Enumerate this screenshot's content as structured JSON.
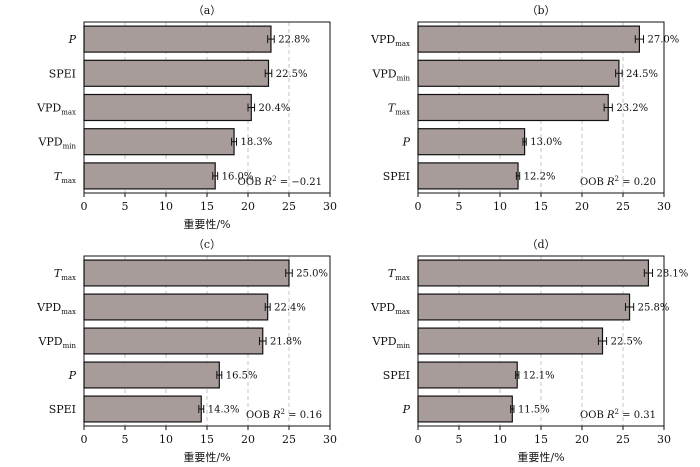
{
  "chart_data": [
    {
      "type": "bar",
      "orientation": "horizontal",
      "title": "（a）",
      "xlabel": "重要性/%",
      "xlim": [
        0,
        30
      ],
      "xticks": [
        0,
        5,
        10,
        15,
        20,
        25,
        30
      ],
      "grid": "vertical-dashed",
      "categories": [
        {
          "main": "P",
          "sub": "",
          "italic": true
        },
        {
          "main": "SPEI",
          "sub": "",
          "italic": false
        },
        {
          "main": "VPD",
          "sub": "max",
          "italic": false
        },
        {
          "main": "VPD",
          "sub": "min",
          "italic": false
        },
        {
          "main": "T",
          "sub": "max",
          "italic": true
        }
      ],
      "values": [
        22.8,
        22.5,
        20.4,
        18.3,
        16.0
      ],
      "value_labels": [
        "22.8%",
        "22.5%",
        "20.4%",
        "18.3%",
        "16.0%"
      ],
      "errors": [
        0.4,
        0.4,
        0.4,
        0.3,
        0.3
      ],
      "annotation": {
        "prefix": "OOB ",
        "var": "R",
        "sup": "2",
        "rest": " = −0.21"
      }
    },
    {
      "type": "bar",
      "orientation": "horizontal",
      "title": "（b）",
      "xlabel": "",
      "xlim": [
        0,
        30
      ],
      "xticks": [
        0,
        5,
        10,
        15,
        20,
        25,
        30
      ],
      "grid": "vertical-dashed",
      "categories": [
        {
          "main": "VPD",
          "sub": "max",
          "italic": false
        },
        {
          "main": "VPD",
          "sub": "min",
          "italic": false
        },
        {
          "main": "T",
          "sub": "max",
          "italic": true
        },
        {
          "main": "P",
          "sub": "",
          "italic": true
        },
        {
          "main": "SPEI",
          "sub": "",
          "italic": false
        }
      ],
      "values": [
        27.0,
        24.5,
        23.2,
        13.0,
        12.2
      ],
      "value_labels": [
        "27.0%",
        "24.5%",
        "23.2%",
        "13.0%",
        "12.2%"
      ],
      "errors": [
        0.5,
        0.4,
        0.5,
        0.2,
        0.2
      ],
      "annotation": {
        "prefix": "OOB ",
        "var": "R",
        "sup": "2",
        "rest": " = 0.20"
      }
    },
    {
      "type": "bar",
      "orientation": "horizontal",
      "title": "（c）",
      "xlabel": "重要性/%",
      "xlim": [
        0,
        30
      ],
      "xticks": [
        0,
        5,
        10,
        15,
        20,
        25,
        30
      ],
      "grid": "vertical-dashed",
      "categories": [
        {
          "main": "T",
          "sub": "max",
          "italic": true
        },
        {
          "main": "VPD",
          "sub": "max",
          "italic": false
        },
        {
          "main": "VPD",
          "sub": "min",
          "italic": false
        },
        {
          "main": "P",
          "sub": "",
          "italic": true
        },
        {
          "main": "SPEI",
          "sub": "",
          "italic": false
        }
      ],
      "values": [
        25.0,
        22.4,
        21.8,
        16.5,
        14.3
      ],
      "value_labels": [
        "25.0%",
        "22.4%",
        "21.8%",
        "16.5%",
        "14.3%"
      ],
      "errors": [
        0.4,
        0.3,
        0.4,
        0.3,
        0.3
      ],
      "annotation": {
        "prefix": "OOB ",
        "var": "R",
        "sup": "2",
        "rest": " = 0.16"
      }
    },
    {
      "type": "bar",
      "orientation": "horizontal",
      "title": "（d）",
      "xlabel": "重要性/%",
      "xlim": [
        0,
        30
      ],
      "xticks": [
        0,
        5,
        10,
        15,
        20,
        25,
        30
      ],
      "grid": "vertical-dashed",
      "categories": [
        {
          "main": "T",
          "sub": "max",
          "italic": true
        },
        {
          "main": "VPD",
          "sub": "max",
          "italic": false
        },
        {
          "main": "VPD",
          "sub": "min",
          "italic": false
        },
        {
          "main": "SPEI",
          "sub": "",
          "italic": false
        },
        {
          "main": "P",
          "sub": "",
          "italic": true
        }
      ],
      "values": [
        28.1,
        25.8,
        22.5,
        12.1,
        11.5
      ],
      "value_labels": [
        "28.1%",
        "25.8%",
        "22.5%",
        "12.1%",
        "11.5%"
      ],
      "errors": [
        0.5,
        0.5,
        0.5,
        0.2,
        0.2
      ],
      "annotation": {
        "prefix": "OOB ",
        "var": "R",
        "sup": "2",
        "rest": " = 0.31"
      }
    }
  ]
}
